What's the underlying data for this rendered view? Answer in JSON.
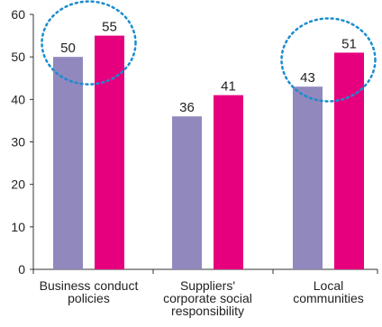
{
  "chart_data": {
    "type": "bar",
    "categories": [
      [
        "Business conduct",
        "policies"
      ],
      [
        "Suppliers'",
        "corporate social",
        "responsibility"
      ],
      [
        "Local",
        "communities"
      ]
    ],
    "series": [
      {
        "values": [
          50,
          36,
          43
        ],
        "color": "#9188be"
      },
      {
        "values": [
          55,
          41,
          51
        ],
        "color": "#e6007e"
      }
    ],
    "ylim": [
      0,
      60
    ],
    "yticks": [
      0,
      10,
      20,
      30,
      40,
      50,
      60
    ],
    "grid": false,
    "legend": "none",
    "highlighted_categories": [
      0,
      2
    ],
    "highlight_color": "#1a8ccf"
  }
}
